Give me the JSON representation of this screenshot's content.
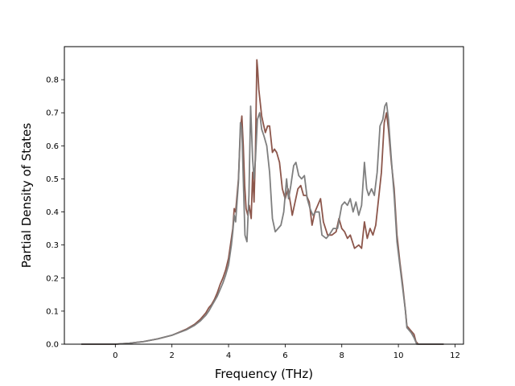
{
  "chart_data": {
    "type": "line",
    "xlabel": "Frequency (THz)",
    "ylabel": "Partial Density of States",
    "xlim": [
      -1.8,
      12.3
    ],
    "ylim": [
      0.0,
      0.9
    ],
    "xticks": [
      0,
      2,
      4,
      6,
      8,
      10,
      12
    ],
    "yticks": [
      0.0,
      0.1,
      0.2,
      0.3,
      0.4,
      0.5,
      0.6,
      0.7,
      0.8
    ],
    "grid": false,
    "legend": "none",
    "series": [
      {
        "color": "#8c564b",
        "points": [
          [
            -1.2,
            0.0
          ],
          [
            -0.2,
            0.0
          ],
          [
            0.0,
            0.0
          ],
          [
            0.5,
            0.003
          ],
          [
            1.0,
            0.008
          ],
          [
            1.5,
            0.016
          ],
          [
            2.0,
            0.027
          ],
          [
            2.5,
            0.045
          ],
          [
            2.8,
            0.06
          ],
          [
            3.0,
            0.075
          ],
          [
            3.2,
            0.095
          ],
          [
            3.3,
            0.11
          ],
          [
            3.4,
            0.12
          ],
          [
            3.5,
            0.135
          ],
          [
            3.6,
            0.155
          ],
          [
            3.7,
            0.18
          ],
          [
            3.8,
            0.2
          ],
          [
            3.9,
            0.225
          ],
          [
            4.0,
            0.26
          ],
          [
            4.1,
            0.32
          ],
          [
            4.15,
            0.35
          ],
          [
            4.2,
            0.41
          ],
          [
            4.25,
            0.4
          ],
          [
            4.3,
            0.45
          ],
          [
            4.35,
            0.5
          ],
          [
            4.42,
            0.65
          ],
          [
            4.47,
            0.69
          ],
          [
            4.52,
            0.6
          ],
          [
            4.57,
            0.48
          ],
          [
            4.62,
            0.41
          ],
          [
            4.68,
            0.39
          ],
          [
            4.73,
            0.42
          ],
          [
            4.8,
            0.38
          ],
          [
            4.85,
            0.52
          ],
          [
            4.9,
            0.43
          ],
          [
            4.95,
            0.58
          ],
          [
            5.0,
            0.86
          ],
          [
            5.03,
            0.83
          ],
          [
            5.07,
            0.77
          ],
          [
            5.12,
            0.73
          ],
          [
            5.17,
            0.69
          ],
          [
            5.22,
            0.67
          ],
          [
            5.3,
            0.64
          ],
          [
            5.38,
            0.66
          ],
          [
            5.45,
            0.66
          ],
          [
            5.55,
            0.58
          ],
          [
            5.62,
            0.59
          ],
          [
            5.7,
            0.58
          ],
          [
            5.8,
            0.55
          ],
          [
            5.9,
            0.47
          ],
          [
            6.0,
            0.44
          ],
          [
            6.1,
            0.47
          ],
          [
            6.2,
            0.42
          ],
          [
            6.25,
            0.39
          ],
          [
            6.35,
            0.43
          ],
          [
            6.45,
            0.47
          ],
          [
            6.55,
            0.48
          ],
          [
            6.65,
            0.45
          ],
          [
            6.75,
            0.45
          ],
          [
            6.85,
            0.43
          ],
          [
            6.95,
            0.36
          ],
          [
            7.05,
            0.4
          ],
          [
            7.15,
            0.42
          ],
          [
            7.25,
            0.44
          ],
          [
            7.35,
            0.37
          ],
          [
            7.5,
            0.33
          ],
          [
            7.65,
            0.33
          ],
          [
            7.8,
            0.34
          ],
          [
            7.9,
            0.38
          ],
          [
            8.0,
            0.35
          ],
          [
            8.1,
            0.34
          ],
          [
            8.2,
            0.32
          ],
          [
            8.3,
            0.33
          ],
          [
            8.45,
            0.29
          ],
          [
            8.6,
            0.3
          ],
          [
            8.7,
            0.29
          ],
          [
            8.8,
            0.37
          ],
          [
            8.9,
            0.32
          ],
          [
            9.0,
            0.35
          ],
          [
            9.1,
            0.33
          ],
          [
            9.2,
            0.36
          ],
          [
            9.3,
            0.44
          ],
          [
            9.4,
            0.52
          ],
          [
            9.5,
            0.67
          ],
          [
            9.58,
            0.7
          ],
          [
            9.65,
            0.65
          ],
          [
            9.75,
            0.55
          ],
          [
            9.85,
            0.47
          ],
          [
            9.95,
            0.33
          ],
          [
            10.05,
            0.25
          ],
          [
            10.15,
            0.18
          ],
          [
            10.25,
            0.1
          ],
          [
            10.3,
            0.055
          ],
          [
            10.45,
            0.04
          ],
          [
            10.55,
            0.03
          ],
          [
            10.62,
            0.008
          ],
          [
            10.7,
            0.0
          ],
          [
            11.0,
            0.0
          ],
          [
            11.6,
            0.0
          ]
        ]
      },
      {
        "color": "#7f7f7f",
        "points": [
          [
            -1.2,
            0.0
          ],
          [
            -0.2,
            0.0
          ],
          [
            0.0,
            0.0
          ],
          [
            0.5,
            0.003
          ],
          [
            1.0,
            0.008
          ],
          [
            1.5,
            0.016
          ],
          [
            2.0,
            0.027
          ],
          [
            2.5,
            0.043
          ],
          [
            2.8,
            0.057
          ],
          [
            3.0,
            0.07
          ],
          [
            3.2,
            0.088
          ],
          [
            3.3,
            0.1
          ],
          [
            3.4,
            0.115
          ],
          [
            3.5,
            0.13
          ],
          [
            3.6,
            0.145
          ],
          [
            3.7,
            0.165
          ],
          [
            3.8,
            0.185
          ],
          [
            3.9,
            0.21
          ],
          [
            4.0,
            0.24
          ],
          [
            4.1,
            0.3
          ],
          [
            4.15,
            0.34
          ],
          [
            4.2,
            0.39
          ],
          [
            4.25,
            0.37
          ],
          [
            4.3,
            0.43
          ],
          [
            4.35,
            0.49
          ],
          [
            4.42,
            0.67
          ],
          [
            4.47,
            0.65
          ],
          [
            4.52,
            0.5
          ],
          [
            4.58,
            0.33
          ],
          [
            4.65,
            0.31
          ],
          [
            4.72,
            0.45
          ],
          [
            4.78,
            0.72
          ],
          [
            4.85,
            0.56
          ],
          [
            4.9,
            0.5
          ],
          [
            4.95,
            0.56
          ],
          [
            5.02,
            0.68
          ],
          [
            5.1,
            0.7
          ],
          [
            5.17,
            0.65
          ],
          [
            5.25,
            0.63
          ],
          [
            5.35,
            0.6
          ],
          [
            5.45,
            0.52
          ],
          [
            5.55,
            0.38
          ],
          [
            5.65,
            0.34
          ],
          [
            5.75,
            0.35
          ],
          [
            5.85,
            0.36
          ],
          [
            5.95,
            0.4
          ],
          [
            6.05,
            0.5
          ],
          [
            6.12,
            0.44
          ],
          [
            6.2,
            0.48
          ],
          [
            6.3,
            0.54
          ],
          [
            6.38,
            0.55
          ],
          [
            6.48,
            0.51
          ],
          [
            6.58,
            0.5
          ],
          [
            6.68,
            0.51
          ],
          [
            6.78,
            0.44
          ],
          [
            6.88,
            0.41
          ],
          [
            6.98,
            0.39
          ],
          [
            7.08,
            0.4
          ],
          [
            7.2,
            0.4
          ],
          [
            7.3,
            0.33
          ],
          [
            7.45,
            0.32
          ],
          [
            7.55,
            0.33
          ],
          [
            7.7,
            0.35
          ],
          [
            7.85,
            0.35
          ],
          [
            8.0,
            0.42
          ],
          [
            8.1,
            0.43
          ],
          [
            8.2,
            0.42
          ],
          [
            8.3,
            0.44
          ],
          [
            8.4,
            0.4
          ],
          [
            8.5,
            0.43
          ],
          [
            8.6,
            0.39
          ],
          [
            8.7,
            0.42
          ],
          [
            8.8,
            0.55
          ],
          [
            8.88,
            0.47
          ],
          [
            8.95,
            0.45
          ],
          [
            9.05,
            0.47
          ],
          [
            9.15,
            0.45
          ],
          [
            9.25,
            0.52
          ],
          [
            9.35,
            0.66
          ],
          [
            9.45,
            0.68
          ],
          [
            9.52,
            0.72
          ],
          [
            9.58,
            0.73
          ],
          [
            9.65,
            0.68
          ],
          [
            9.75,
            0.56
          ],
          [
            9.85,
            0.45
          ],
          [
            9.95,
            0.31
          ],
          [
            10.05,
            0.24
          ],
          [
            10.15,
            0.17
          ],
          [
            10.25,
            0.1
          ],
          [
            10.3,
            0.05
          ],
          [
            10.45,
            0.035
          ],
          [
            10.55,
            0.02
          ],
          [
            10.65,
            0.0
          ],
          [
            11.0,
            0.0
          ],
          [
            11.6,
            0.0
          ]
        ]
      }
    ]
  }
}
